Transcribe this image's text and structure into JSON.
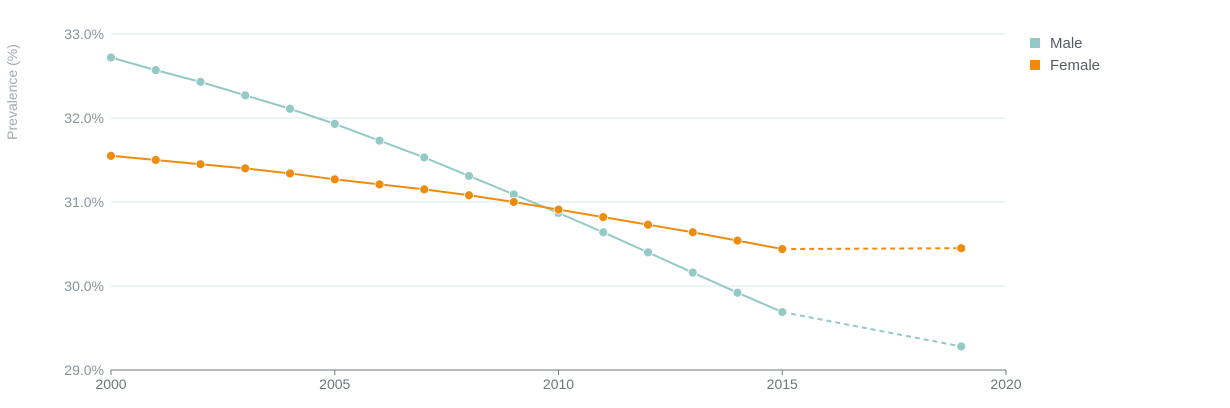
{
  "chart_data": {
    "type": "line",
    "title": "",
    "xlabel": "",
    "ylabel": "Prevalence (%)",
    "x_ticks": [
      2000,
      2005,
      2010,
      2015,
      2020
    ],
    "y_ticks": [
      29.0,
      30.0,
      31.0,
      32.0,
      33.0
    ],
    "y_tick_labels": [
      "29.0%",
      "30.0%",
      "31.0%",
      "32.0%",
      "33.0%"
    ],
    "xlim": [
      2000,
      2020
    ],
    "ylim": [
      29.0,
      33.0
    ],
    "grid": "horizontal",
    "legend_position": "top-right",
    "series": [
      {
        "name": "Male",
        "color": "#93c9c7",
        "solid": {
          "x": [
            2000,
            2001,
            2002,
            2003,
            2004,
            2005,
            2006,
            2007,
            2008,
            2009,
            2010,
            2011,
            2012,
            2013,
            2014,
            2015
          ],
          "y": [
            32.72,
            32.57,
            32.43,
            32.27,
            32.11,
            31.93,
            31.73,
            31.53,
            31.31,
            31.09,
            30.87,
            30.64,
            30.4,
            30.16,
            29.92,
            29.69
          ]
        },
        "projection": {
          "x": [
            2015,
            2019
          ],
          "y": [
            29.69,
            29.28
          ]
        }
      },
      {
        "name": "Female",
        "color": "#ef8c0e",
        "solid": {
          "x": [
            2000,
            2001,
            2002,
            2003,
            2004,
            2005,
            2006,
            2007,
            2008,
            2009,
            2010,
            2011,
            2012,
            2013,
            2014,
            2015
          ],
          "y": [
            31.55,
            31.5,
            31.45,
            31.4,
            31.34,
            31.27,
            31.21,
            31.15,
            31.08,
            31.0,
            30.91,
            30.82,
            30.73,
            30.64,
            30.54,
            30.44
          ]
        },
        "projection": {
          "x": [
            2015,
            2019
          ],
          "y": [
            30.44,
            30.45
          ]
        }
      }
    ]
  }
}
